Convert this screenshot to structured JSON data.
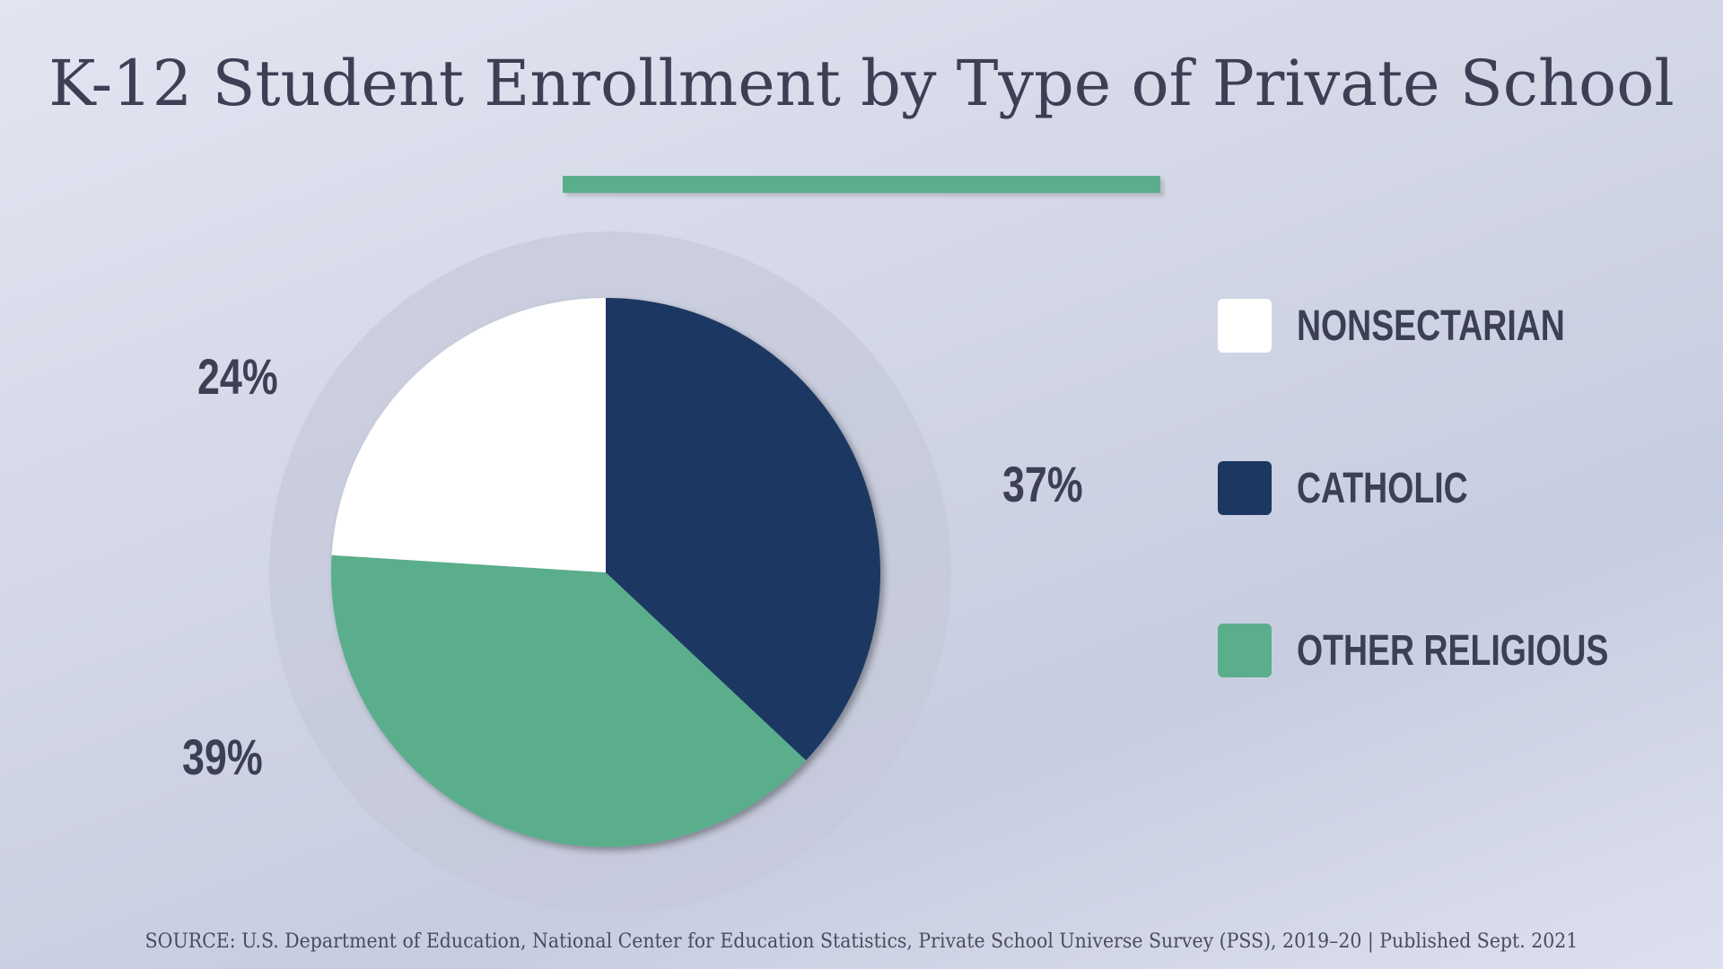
{
  "chart_data": {
    "type": "pie",
    "title": "K-12 Student Enrollment by Type of Private School",
    "slices": [
      {
        "name": "CATHOLIC",
        "value": 37,
        "label": "37%",
        "color": "#1c3762"
      },
      {
        "name": "OTHER RELIGIOUS",
        "value": 39,
        "label": "39%",
        "color": "#5aae8c"
      },
      {
        "name": "NONSECTARIAN",
        "value": 24,
        "label": "24%",
        "color": "#ffffff"
      }
    ],
    "legend": [
      "NONSECTARIAN",
      "CATHOLIC",
      "OTHER RELIGIOUS"
    ],
    "legend_placement": "right",
    "source": "SOURCE: U.S. Department of Education, National Center for Education Statistics, Private School Universe Survey (PSS), 2019–20 | Published Sept. 2021"
  },
  "colors": {
    "accent": "#5aae8c",
    "text": "#3d3f55"
  }
}
